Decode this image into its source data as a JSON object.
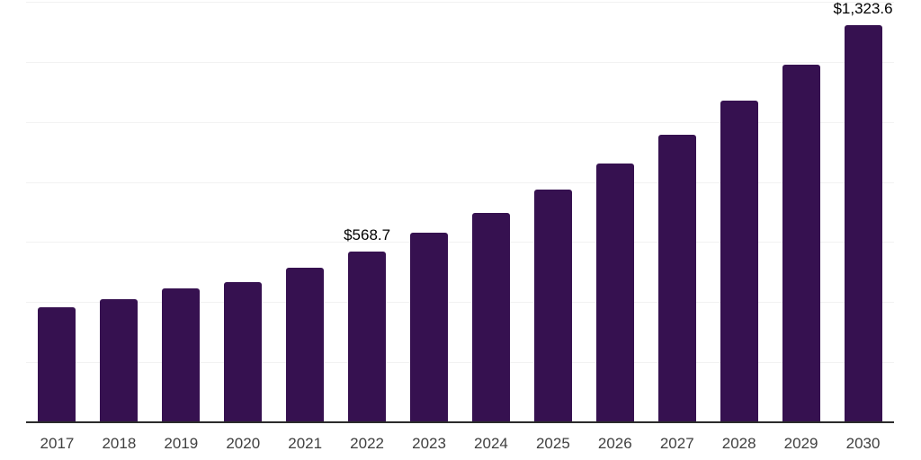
{
  "chart_data": {
    "type": "bar",
    "title": "",
    "xlabel": "",
    "ylabel": "",
    "categories": [
      "2017",
      "2018",
      "2019",
      "2020",
      "2021",
      "2022",
      "2023",
      "2024",
      "2025",
      "2026",
      "2027",
      "2028",
      "2029",
      "2030"
    ],
    "values": [
      383,
      410,
      445,
      468,
      514,
      568.7,
      630,
      698,
      776,
      861,
      958,
      1070,
      1190,
      1323.6
    ],
    "data_labels": [
      "",
      "",
      "",
      "",
      "",
      "$568.7",
      "",
      "",
      "",
      "",
      "",
      "",
      "",
      "$1,323.6"
    ],
    "ylim": [
      0,
      1400
    ],
    "gridline_step": 200,
    "grid": true,
    "legend_position": "none",
    "colors": {
      "bar": "#361150",
      "axis_line": "#2b2b2b",
      "gridline": "#f2f2f2",
      "tick_label": "#404040",
      "data_label": "#000000",
      "background": "#ffffff"
    }
  }
}
